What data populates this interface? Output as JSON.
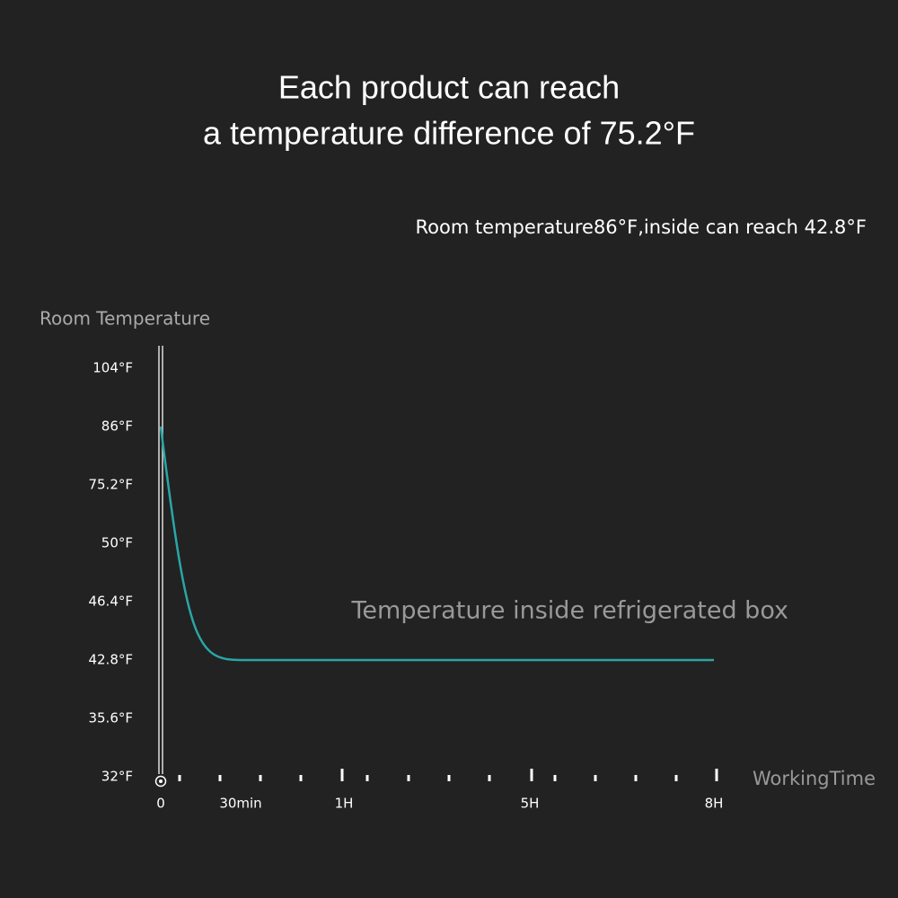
{
  "chart_data": {
    "type": "line",
    "title": [
      "Each product can reach",
      "a temperature difference of 75.2°F"
    ],
    "subtitle": "Room temperature86°F,inside can reach 42.8°F",
    "y_label": "Room Temperature",
    "x_label": "WorkingTime",
    "annotation": "Temperature inside refrigerated box",
    "categories": [
      "0",
      "30min",
      "1H",
      "5H",
      "8H"
    ],
    "yticks": [
      {
        "value": 104,
        "label": "104°F"
      },
      {
        "value": 86,
        "label": "86°F"
      },
      {
        "value": 75.2,
        "label": "75.2°F"
      },
      {
        "value": 50,
        "label": "50°F"
      },
      {
        "value": 46.4,
        "label": "46.4°F"
      },
      {
        "value": 42.8,
        "label": "42.8°F"
      },
      {
        "value": 35.6,
        "label": "35.6°F"
      },
      {
        "value": 32,
        "label": "32°F"
      }
    ],
    "series": [
      {
        "color": "#2aa6a6",
        "values": [
          86,
          42.8,
          42.8,
          42.8,
          42.8
        ]
      }
    ]
  }
}
